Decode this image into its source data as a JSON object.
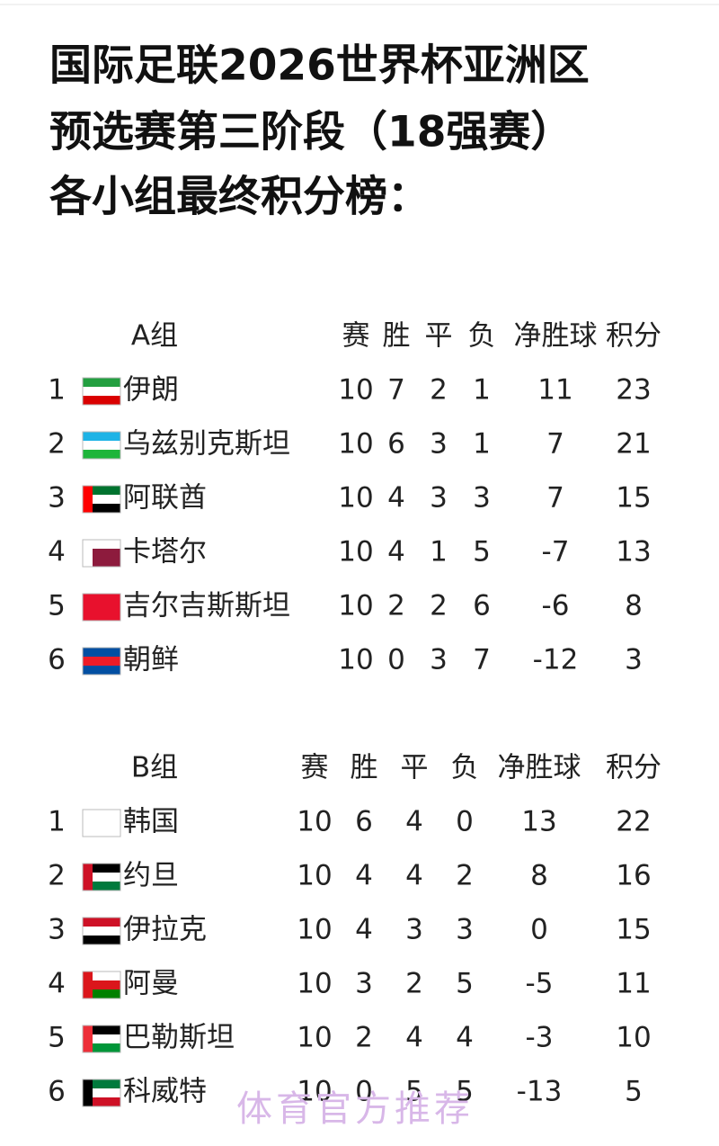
{
  "title": [
    "国际足联2026世界杯亚洲区",
    "预选赛第三阶段（18强赛）",
    "各小组最终积分榜："
  ],
  "groups": [
    {
      "name": "A组",
      "headers": [
        "赛",
        "胜",
        "平",
        "负",
        "净胜球",
        "积分"
      ],
      "rows": [
        [
          1,
          "伊朗",
          10,
          7,
          2,
          1,
          11,
          23
        ],
        [
          2,
          "乌兹别克斯坦",
          10,
          6,
          3,
          1,
          7,
          21
        ],
        [
          3,
          "阿联酋",
          10,
          4,
          3,
          3,
          7,
          15
        ],
        [
          4,
          "卡塔尔",
          10,
          4,
          1,
          5,
          -7,
          13
        ],
        [
          5,
          "吉尔吉斯斯坦",
          10,
          2,
          2,
          6,
          -6,
          8
        ],
        [
          6,
          "朝鲜",
          10,
          0,
          3,
          7,
          -12,
          3
        ]
      ]
    },
    {
      "name": "B组",
      "headers": [
        "赛",
        "胜",
        "平",
        "负",
        "净胜球",
        "积分"
      ],
      "rows": [
        [
          1,
          "韩国",
          10,
          6,
          4,
          0,
          13,
          22
        ],
        [
          2,
          "约旦",
          10,
          4,
          4,
          2,
          8,
          16
        ],
        [
          3,
          "伊拉克",
          10,
          4,
          3,
          3,
          0,
          15
        ],
        [
          4,
          "阿曼",
          10,
          3,
          2,
          5,
          -5,
          11
        ],
        [
          5,
          "巴勒斯坦",
          10,
          2,
          4,
          4,
          -3,
          10
        ],
        [
          6,
          "科威特",
          10,
          0,
          5,
          5,
          -13,
          5
        ]
      ]
    }
  ],
  "watermark": "体育官方推荐"
}
